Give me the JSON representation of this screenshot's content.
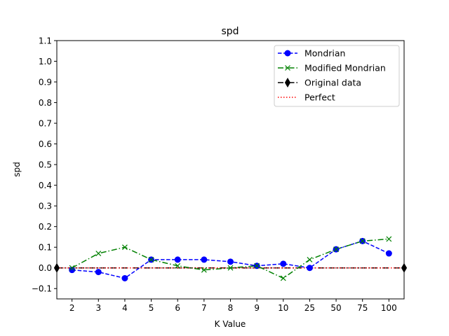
{
  "chart_data": {
    "type": "line",
    "title": "spd",
    "xlabel": "K Value",
    "ylabel": "spd",
    "categories": [
      "2",
      "3",
      "4",
      "5",
      "6",
      "7",
      "8",
      "9",
      "10",
      "25",
      "50",
      "75",
      "100"
    ],
    "ylim": [
      -0.15,
      1.1
    ],
    "yticks": [
      -0.1,
      0.0,
      0.1,
      0.2,
      0.3,
      0.4,
      0.5,
      0.6,
      0.7,
      0.8,
      0.9,
      1.0,
      1.1
    ],
    "ytick_labels": [
      "−0.1",
      "0.0",
      "0.1",
      "0.2",
      "0.3",
      "0.4",
      "0.5",
      "0.6",
      "0.7",
      "0.8",
      "0.9",
      "1.0",
      "1.1"
    ],
    "grid": false,
    "legend_position": "top-right",
    "series": [
      {
        "name": "Mondrian",
        "color": "#0000ff",
        "line": "dashed",
        "marker": "circle",
        "values": [
          -0.01,
          -0.02,
          -0.05,
          0.04,
          0.04,
          0.04,
          0.03,
          0.01,
          0.02,
          0.0,
          0.09,
          0.13,
          0.07
        ]
      },
      {
        "name": "Modified Mondrian",
        "color": "#008000",
        "line": "dashdot",
        "marker": "x",
        "values": [
          0.0,
          0.07,
          0.1,
          0.04,
          0.01,
          -0.01,
          0.0,
          0.01,
          -0.05,
          0.04,
          0.09,
          0.13,
          0.14
        ]
      },
      {
        "name": "Original data",
        "color": "#000000",
        "line": "dashdot",
        "marker": "diamond",
        "value": 0.0
      },
      {
        "name": "Perfect",
        "color": "#ff0000",
        "line": "dotted",
        "marker": "none",
        "value": 0.0
      }
    ]
  }
}
